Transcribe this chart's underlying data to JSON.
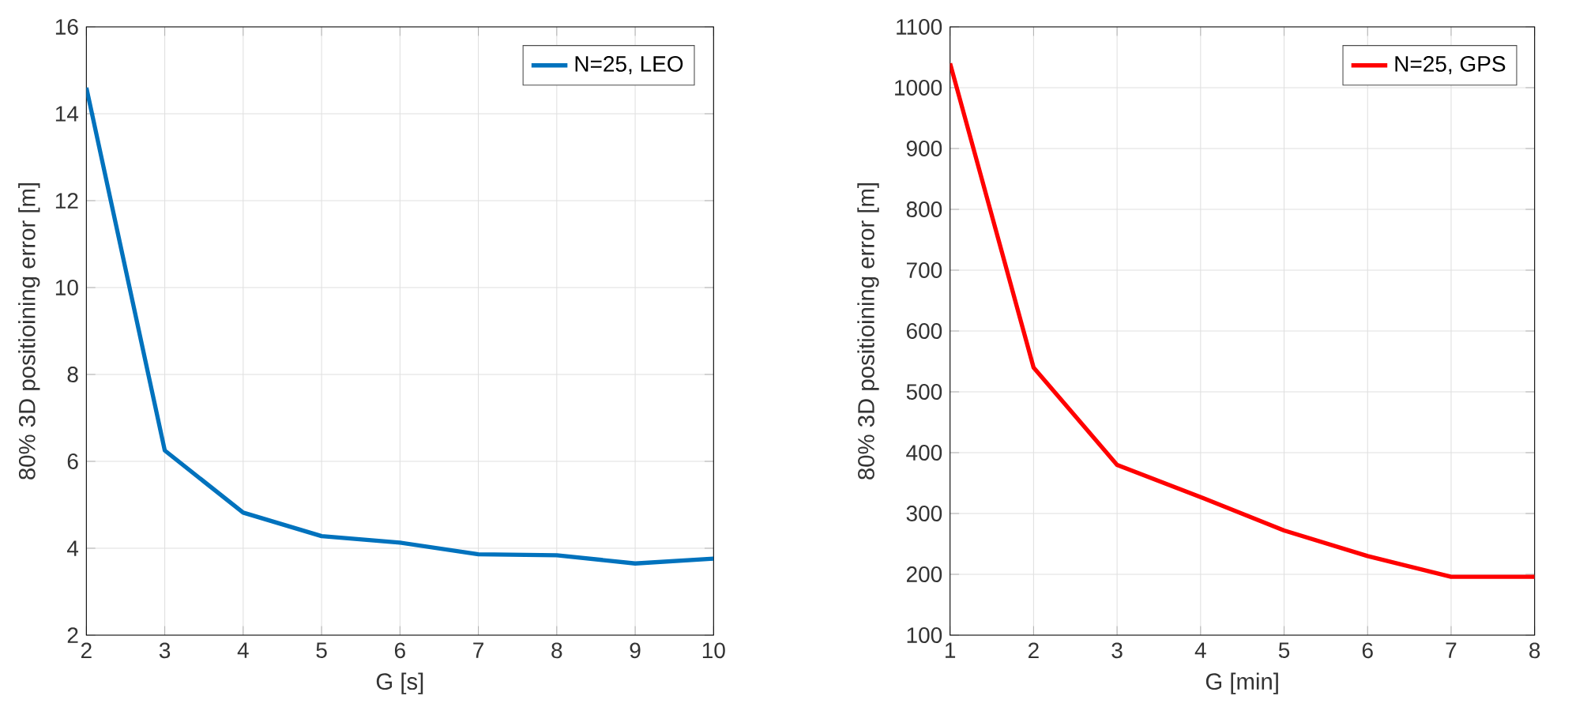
{
  "chart_data": [
    {
      "type": "line",
      "xlabel": "G [s]",
      "ylabel": "80% 3D positioining error [m]",
      "x": [
        2,
        3,
        4,
        5,
        6,
        7,
        8,
        9,
        10
      ],
      "series": [
        {
          "name": "N=25, LEO",
          "color": "#0072bd",
          "values": [
            14.6,
            6.25,
            4.82,
            4.28,
            4.13,
            3.86,
            3.84,
            3.65,
            3.76
          ]
        }
      ],
      "xlim": [
        2,
        10
      ],
      "ylim": [
        2,
        16
      ],
      "xticks": [
        2,
        3,
        4,
        5,
        6,
        7,
        8,
        9,
        10
      ],
      "yticks": [
        2,
        4,
        6,
        8,
        10,
        12,
        14,
        16
      ],
      "grid": true,
      "legend": "top right",
      "marker": "none",
      "line_style": "solid"
    },
    {
      "type": "line",
      "xlabel": "G [min]",
      "ylabel": "80% 3D positioining error [m]",
      "x": [
        1,
        2,
        3,
        4,
        5,
        6,
        7,
        8
      ],
      "series": [
        {
          "name": "N=25, GPS",
          "color": "#ff0000",
          "values": [
            1040,
            540,
            380,
            327,
            272,
            230,
            196,
            196
          ]
        }
      ],
      "xlim": [
        1,
        8
      ],
      "ylim": [
        100,
        1100
      ],
      "xticks": [
        1,
        2,
        3,
        4,
        5,
        6,
        7,
        8
      ],
      "yticks": [
        100,
        200,
        300,
        400,
        500,
        600,
        700,
        800,
        900,
        1000,
        1100
      ],
      "grid": true,
      "legend": "top right",
      "marker": "none",
      "line_style": "solid"
    }
  ]
}
